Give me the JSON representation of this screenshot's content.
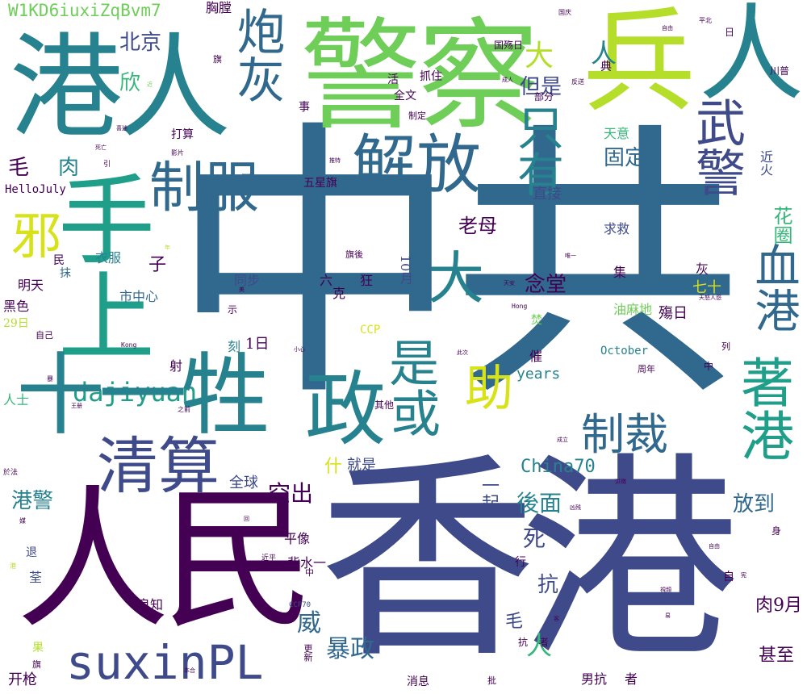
{
  "palette": {
    "dark_purple": "#440154",
    "indigo": "#3e4a89",
    "blue": "#31688e",
    "teal": "#26828e",
    "green_teal": "#1f9e89",
    "green": "#35b779",
    "light_green": "#6ece58",
    "lime": "#b5de2b",
    "yellow": "#d8e219"
  },
  "words": {
    "zhonggong": "中共",
    "xianggang": "香港",
    "renmin": "人民",
    "gangren": "港人",
    "jingcha": "警察",
    "bing": "兵",
    "jiefang": "解放",
    "zhifu": "制服",
    "zhengfu": "政",
    "qingsuan": "清算",
    "suxinpl": "suxinPL",
    "dajiyuan": "dajiyuan",
    "paohui": "炮灰",
    "ren_top": "人",
    "xie": "邪",
    "shoushang": "手上",
    "shisheng": "十一牲",
    "zhicai": "制裁",
    "zhuxie": "助",
    "shi": "是",
    "huo": "或",
    "zhiyou": "只有",
    "da_ren": "大",
    "wujing": "武警",
    "xuegang": "血港",
    "zhugang": "著港",
    "huaquan": "花圈",
    "id": "W1KD6iuxiZqBvm7",
    "xiongtang": "胸膛",
    "beijing": "北京",
    "danshi": "但是",
    "dada": "大",
    "renren": "人",
    "mao": "毛",
    "rou": "肉",
    "xin": "欣",
    "laomu": "老母",
    "niantang": "念堂",
    "guding": "固定",
    "zhijie": "直接",
    "tianyi": "天意",
    "qiujiu": "求救",
    "jinhuo": "近火",
    "china70": "China70",
    "houmian": "後面",
    "yiqi": "一起",
    "fangdao": "放到",
    "si": "死",
    "kang": "抗",
    "baozheng": "暴政",
    "wei": "威",
    "rou9": "肉9月",
    "shenzhi": "甚至",
    "years": "years",
    "october": "October",
    "yimaodi": "油麻地",
    "qishi": "七十",
    "shangri": "殤日",
    "gangjing": "港警",
    "kongchu": "空出",
    "quanqiu": "全球",
    "jiushi": "就是",
    "shen": "什",
    "pingxiang": "平像",
    "beishui": "背水一",
    "liangzhi": "良知",
    "xiaoxi": "消息",
    "nankang": "男抗",
    "zhe": "者",
    "kaiqiang": "开枪",
    "ccp": "CCP",
    "ccp70": "CCP70",
    "hellojuly": "HelloJuly",
    "wuxingqi": "五星旗",
    "yifu": "衣服",
    "shizhongxin": "市中心",
    "mingtian": "明天",
    "heise": "黑色",
    "d29": "29日",
    "ziji": "自己",
    "renshi": "人士",
    "tongbu": "同步",
    "liu": "六",
    "kuang": "狂",
    "ke": "克",
    "oct10": "10月",
    "qihou": "旗後",
    "daxuan": "打算",
    "quanwen": "全文",
    "zhuazhu": "抓住",
    "guoshangri": "国殇日",
    "bufen": "部分",
    "zhiding": "制定",
    "dian": "典",
    "ji": "集",
    "hui": "灰",
    "d1": "1日",
    "ke2": "刻",
    "she": "射",
    "zi": "子",
    "qita": "其他",
    "cui": "催",
    "zhounian": "周年",
    "zhong": "中",
    "lie": "列",
    "xing": "行",
    "zi2": "自",
    "mao2": "毛",
    "ren2": "人",
    "guo": "果",
    "qi": "旗",
    "tui": "退",
    "quan": "荃",
    "min": "民",
    "mo": "抹",
    "shi2": "事",
    "huo2": "活",
    "chuanpu": "川普",
    "ri": "日",
    "qi2": "旗",
    "fen": "焚",
    "shi3": "示",
    "kang2": "抗",
    "zhe2": "者",
    "shen2": "身",
    "gengxin": "更新",
    "pi": "批",
    "zhong2": "中",
    "jinping": "近平",
    "yushe": "於法",
    "hong": "Hong",
    "kong": "Kong",
    "tiananmen": "天安",
    "zhuangyu": "状",
    "small": {
      "guoqing": "国庆",
      "ziyou": "自由",
      "pingbei": "平北",
      "chengren": "成人",
      "fansong": "反送",
      "yingpian": "影片",
      "jin": "近",
      "tuite": "推特",
      "siwang": "死亡",
      "xishi": "喜迷",
      "yin": "引",
      "feixin": "信心",
      "weiyi": "唯一",
      "mei": "美",
      "xiaoxin": "小心",
      "tiannu": "天怒人怨",
      "jiyin": "揭",
      "ciyi": "此次",
      "zhuang": "状",
      "zhiqian": "之前",
      "wangce": "王册",
      "hongcai": "红彩",
      "chengli": "成立",
      "hongdi": "洪徵",
      "xiongchi": "凶残",
      "shipin": "視頻",
      "ziyou2": "自由",
      "kehu": "客",
      "yi": "易",
      "benhe": "本合",
      "shuanghe": "双合",
      "hou": "毫",
      "zhuo": "捉",
      "shichang": "市场",
      "jin2": "近",
      "mei2": "媒",
      "bao": "暴",
      "hui2": "回",
      "nian": "年",
      "shi4": "市",
      "ke3": "刻",
      "da": "大",
      "gang": "港",
      "xian": "宪"
    }
  }
}
